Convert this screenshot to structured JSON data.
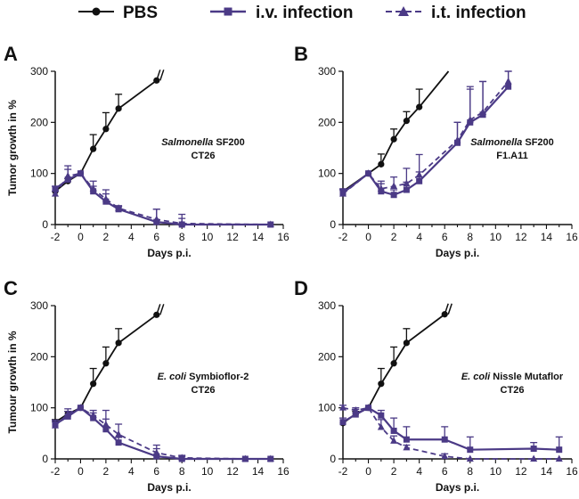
{
  "legend": {
    "pbs": "PBS",
    "iv": "i.v. infection",
    "it": "i.t. infection"
  },
  "colors": {
    "pbs": "#111111",
    "iv": "#4b3a86",
    "it": "#4b3a86"
  },
  "chart_data": [
    {
      "type": "line",
      "panel": "A",
      "ylabel": "Tumor growth in %",
      "xlabel": "Days p.i.",
      "annotation": {
        "italic": "Salmonella",
        "rest": " SF200",
        "line2": "CT26"
      },
      "xlim": [
        -2,
        16
      ],
      "ylim": [
        0,
        300
      ],
      "xticks": [
        -2,
        0,
        2,
        4,
        6,
        8,
        10,
        12,
        14,
        16
      ],
      "yticks": [
        0,
        100,
        200,
        300
      ],
      "series": [
        {
          "name": "PBS",
          "style": "pbs",
          "extend": "break",
          "x": [
            -2,
            -1,
            0,
            1,
            2,
            3,
            6
          ],
          "y": [
            65,
            85,
            100,
            148,
            187,
            227,
            282
          ],
          "err": [
            0,
            5,
            0,
            28,
            32,
            28,
            0
          ]
        },
        {
          "name": "i.v. infection",
          "style": "iv",
          "x": [
            -2,
            -1,
            0,
            1,
            2,
            3,
            6,
            8,
            15
          ],
          "y": [
            70,
            88,
            100,
            65,
            45,
            30,
            5,
            0,
            0
          ],
          "err": [
            5,
            20,
            0,
            10,
            15,
            5,
            25,
            20,
            0
          ]
        },
        {
          "name": "i.t. infection",
          "style": "it",
          "x": [
            -2,
            -1,
            0,
            1,
            2,
            3,
            6,
            8,
            15
          ],
          "y": [
            60,
            95,
            100,
            70,
            50,
            32,
            10,
            2,
            0
          ],
          "err": [
            5,
            20,
            0,
            15,
            18,
            5,
            20,
            10,
            0
          ]
        }
      ]
    },
    {
      "type": "line",
      "panel": "B",
      "ylabel": "",
      "xlabel": "Days p.i.",
      "annotation": {
        "italic": "Salmonella",
        "rest": " SF200",
        "line2": "F1.A11"
      },
      "xlim": [
        -2,
        16
      ],
      "ylim": [
        0,
        300
      ],
      "xticks": [
        -2,
        0,
        2,
        4,
        6,
        8,
        10,
        12,
        14,
        16
      ],
      "yticks": [
        0,
        100,
        200,
        300
      ],
      "series": [
        {
          "name": "PBS",
          "style": "pbs",
          "extend": "line",
          "x": [
            -2,
            0,
            1,
            2,
            3,
            4,
            6.3
          ],
          "y": [
            65,
            100,
            118,
            167,
            203,
            230,
            300
          ],
          "err": [
            0,
            0,
            20,
            20,
            18,
            35,
            0
          ]
        },
        {
          "name": "i.v. infection",
          "style": "iv",
          "x": [
            -2,
            0,
            1,
            2,
            3,
            4,
            7,
            8,
            9,
            11
          ],
          "y": [
            62,
            100,
            65,
            58,
            68,
            85,
            160,
            200,
            215,
            270
          ],
          "err": [
            8,
            0,
            15,
            10,
            15,
            18,
            40,
            65,
            65,
            30
          ]
        },
        {
          "name": "i.t. infection",
          "style": "it",
          "x": [
            -2,
            0,
            1,
            2,
            3,
            4,
            7,
            8,
            9,
            11
          ],
          "y": [
            60,
            100,
            70,
            75,
            80,
            97,
            165,
            205,
            220,
            280
          ],
          "err": [
            8,
            0,
            15,
            18,
            30,
            40,
            35,
            65,
            60,
            30
          ]
        }
      ]
    },
    {
      "type": "line",
      "panel": "C",
      "ylabel": "Tumour growth in %",
      "xlabel": "Days p.i.",
      "annotation": {
        "italic": "E. coli",
        "rest": " Symbioflor-2",
        "line2": "CT26"
      },
      "xlim": [
        -2,
        16
      ],
      "ylim": [
        0,
        300
      ],
      "xticks": [
        -2,
        0,
        2,
        4,
        6,
        8,
        10,
        12,
        14,
        16
      ],
      "yticks": [
        0,
        100,
        200,
        300
      ],
      "series": [
        {
          "name": "PBS",
          "style": "pbs",
          "extend": "break",
          "x": [
            -2,
            -1,
            0,
            1,
            2,
            3,
            6
          ],
          "y": [
            72,
            88,
            100,
            147,
            187,
            227,
            282
          ],
          "err": [
            5,
            5,
            0,
            30,
            32,
            28,
            0
          ]
        },
        {
          "name": "i.v. infection",
          "style": "iv",
          "x": [
            -2,
            -1,
            0,
            1,
            2,
            3,
            6,
            8,
            13,
            15
          ],
          "y": [
            68,
            83,
            100,
            80,
            58,
            32,
            5,
            0,
            0,
            0
          ],
          "err": [
            8,
            10,
            0,
            10,
            20,
            10,
            15,
            5,
            0,
            0
          ]
        },
        {
          "name": "i.t. infection",
          "style": "it",
          "x": [
            -2,
            -1,
            0,
            1,
            2,
            3,
            6,
            8,
            13,
            15
          ],
          "y": [
            65,
            88,
            100,
            85,
            67,
            48,
            12,
            2,
            0,
            0
          ],
          "err": [
            8,
            10,
            0,
            10,
            28,
            20,
            15,
            5,
            0,
            0
          ]
        }
      ]
    },
    {
      "type": "line",
      "panel": "D",
      "ylabel": "",
      "xlabel": "Days p.i.",
      "annotation": {
        "italic": "E. coli",
        "rest": " Nissle Mutaflor",
        "line2": "CT26"
      },
      "xlim": [
        -2,
        16
      ],
      "ylim": [
        0,
        300
      ],
      "xticks": [
        -2,
        0,
        2,
        4,
        6,
        8,
        10,
        12,
        14,
        16
      ],
      "yticks": [
        0,
        100,
        200,
        300
      ],
      "series": [
        {
          "name": "PBS",
          "style": "pbs",
          "extend": "break",
          "x": [
            -2,
            -1,
            0,
            1,
            2,
            3,
            6
          ],
          "y": [
            70,
            88,
            100,
            147,
            187,
            227,
            283
          ],
          "err": [
            0,
            5,
            0,
            30,
            32,
            28,
            0
          ]
        },
        {
          "name": "i.v. infection",
          "style": "iv",
          "x": [
            -2,
            -1,
            0,
            1,
            2,
            3,
            6,
            8,
            13,
            15
          ],
          "y": [
            72,
            87,
            100,
            85,
            55,
            38,
            38,
            18,
            20,
            18
          ],
          "err": [
            8,
            10,
            0,
            10,
            25,
            25,
            25,
            25,
            12,
            25
          ]
        },
        {
          "name": "i.t. infection",
          "style": "it",
          "x": [
            -2,
            -1,
            0,
            1,
            2,
            3,
            6,
            8,
            13,
            15
          ],
          "y": [
            100,
            95,
            100,
            62,
            35,
            22,
            5,
            0,
            0,
            0
          ],
          "err": [
            5,
            5,
            0,
            15,
            10,
            5,
            5,
            0,
            0,
            0
          ]
        }
      ]
    }
  ]
}
